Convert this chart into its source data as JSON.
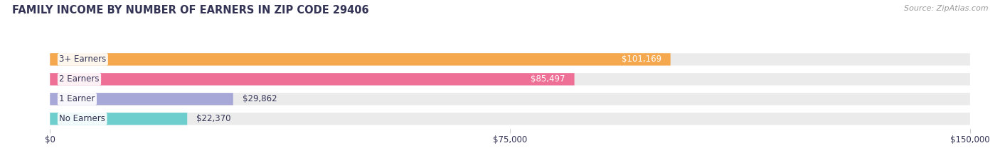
{
  "title": "FAMILY INCOME BY NUMBER OF EARNERS IN ZIP CODE 29406",
  "source": "Source: ZipAtlas.com",
  "categories": [
    "No Earners",
    "1 Earner",
    "2 Earners",
    "3+ Earners"
  ],
  "values": [
    22370,
    29862,
    85497,
    101169
  ],
  "bar_colors": [
    "#6ecece",
    "#a8a8d8",
    "#ee7096",
    "#f5a84e"
  ],
  "bar_bg_color": "#ebebeb",
  "value_labels": [
    "$22,370",
    "$29,862",
    "$85,497",
    "$101,169"
  ],
  "x_ticks": [
    0,
    75000,
    150000
  ],
  "x_tick_labels": [
    "$0",
    "$75,000",
    "$150,000"
  ],
  "xlim": [
    0,
    150000
  ],
  "title_color": "#333355",
  "label_color": "#333355",
  "source_color": "#999999",
  "background_color": "#ffffff",
  "title_fontsize": 10.5,
  "source_fontsize": 8,
  "bar_label_fontsize": 8.5,
  "category_fontsize": 8.5,
  "tick_fontsize": 8.5,
  "bar_height": 0.62
}
